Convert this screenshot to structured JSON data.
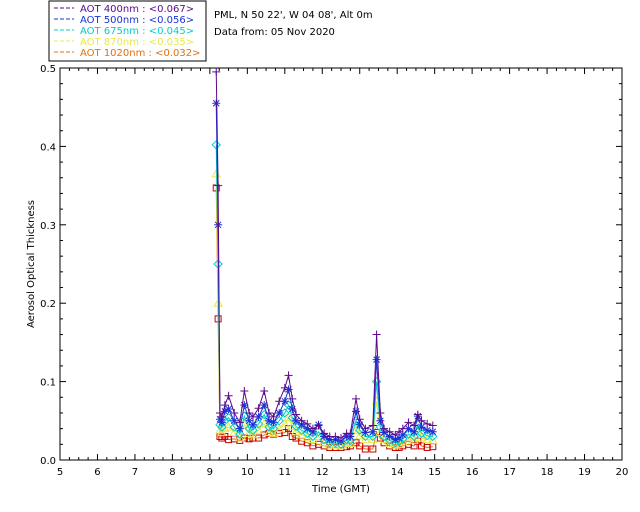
{
  "header": {
    "site": "PML, N 50 22', W 04 08', Alt 0m",
    "date": "Data from: 05 Nov 2020"
  },
  "colors": {
    "axis": "#000000",
    "s400": "#5a0a8c",
    "s500": "#1a33d9",
    "s675": "#00cccc",
    "s870": "#e8e84a",
    "s1020": "#e07010",
    "s1020_marker": "#cc0000"
  },
  "chart_data": {
    "type": "line",
    "xlabel": "Time (GMT)",
    "ylabel": "Aerosol Optical Thickness",
    "xlim": [
      5,
      20
    ],
    "ylim": [
      0,
      0.5
    ],
    "xticks": [
      "5",
      "6",
      "7",
      "8",
      "9",
      "10",
      "11",
      "12",
      "13",
      "14",
      "15",
      "16",
      "17",
      "18",
      "19",
      "20"
    ],
    "yticks": [
      "0.0",
      "0.1",
      "0.2",
      "0.3",
      "0.4",
      "0.5"
    ],
    "x": [
      9.17,
      9.22,
      9.27,
      9.32,
      9.4,
      9.5,
      9.65,
      9.8,
      9.92,
      10.05,
      10.15,
      10.3,
      10.45,
      10.58,
      10.7,
      10.85,
      11.0,
      11.1,
      11.2,
      11.3,
      11.45,
      11.6,
      11.75,
      11.9,
      12.05,
      12.2,
      12.35,
      12.5,
      12.65,
      12.75,
      12.9,
      13.0,
      13.15,
      13.35,
      13.45,
      13.55,
      13.65,
      13.8,
      13.95,
      14.05,
      14.15,
      14.3,
      14.45,
      14.55,
      14.65,
      14.8,
      14.95
    ],
    "series": [
      {
        "name": "AOT  400nm : <0.067>",
        "marker": "plus",
        "values": [
          0.495,
          0.35,
          0.06,
          0.055,
          0.07,
          0.082,
          0.06,
          0.048,
          0.088,
          0.06,
          0.055,
          0.066,
          0.088,
          0.06,
          0.055,
          0.075,
          0.092,
          0.108,
          0.078,
          0.058,
          0.05,
          0.046,
          0.04,
          0.044,
          0.034,
          0.03,
          0.03,
          0.028,
          0.034,
          0.034,
          0.078,
          0.052,
          0.04,
          0.044,
          0.16,
          0.06,
          0.04,
          0.036,
          0.032,
          0.036,
          0.04,
          0.048,
          0.044,
          0.058,
          0.05,
          0.046,
          0.044
        ]
      },
      {
        "name": "AOT  500nm : <0.056>",
        "marker": "star",
        "values": [
          0.455,
          0.3,
          0.052,
          0.048,
          0.062,
          0.065,
          0.05,
          0.04,
          0.07,
          0.05,
          0.045,
          0.055,
          0.07,
          0.05,
          0.048,
          0.06,
          0.075,
          0.09,
          0.065,
          0.05,
          0.045,
          0.04,
          0.036,
          0.045,
          0.03,
          0.026,
          0.026,
          0.024,
          0.03,
          0.03,
          0.062,
          0.045,
          0.035,
          0.036,
          0.128,
          0.05,
          0.035,
          0.03,
          0.026,
          0.028,
          0.032,
          0.04,
          0.036,
          0.056,
          0.042,
          0.038,
          0.036
        ]
      },
      {
        "name": "AOT  675nm : <0.045>",
        "marker": "diamond",
        "values": [
          0.402,
          0.25,
          0.045,
          0.042,
          0.05,
          0.054,
          0.042,
          0.033,
          0.056,
          0.04,
          0.038,
          0.046,
          0.058,
          0.042,
          0.04,
          0.05,
          0.06,
          0.07,
          0.054,
          0.043,
          0.038,
          0.034,
          0.03,
          0.036,
          0.026,
          0.022,
          0.022,
          0.02,
          0.026,
          0.025,
          0.05,
          0.038,
          0.03,
          0.03,
          0.1,
          0.042,
          0.03,
          0.025,
          0.022,
          0.024,
          0.027,
          0.033,
          0.03,
          0.045,
          0.034,
          0.031,
          0.03
        ]
      },
      {
        "name": "AOT  870nm : <0.035>",
        "marker": "triangle",
        "values": [
          0.365,
          0.2,
          0.038,
          0.035,
          0.04,
          0.042,
          0.035,
          0.028,
          0.045,
          0.034,
          0.032,
          0.038,
          0.046,
          0.035,
          0.034,
          0.04,
          0.046,
          0.054,
          0.043,
          0.036,
          0.032,
          0.029,
          0.026,
          0.03,
          0.022,
          0.019,
          0.019,
          0.018,
          0.022,
          0.021,
          0.038,
          0.031,
          0.026,
          0.026,
          0.075,
          0.035,
          0.026,
          0.021,
          0.019,
          0.02,
          0.023,
          0.027,
          0.025,
          0.036,
          0.028,
          0.026,
          0.025
        ]
      },
      {
        "name": "AOT 1020nm : <0.032>",
        "marker": "square",
        "values": [
          0.347,
          0.18,
          0.03,
          0.028,
          0.03,
          0.026,
          0.027,
          0.025,
          0.028,
          0.027,
          0.028,
          0.028,
          0.032,
          0.034,
          0.033,
          0.034,
          0.035,
          0.04,
          0.03,
          0.028,
          0.024,
          0.022,
          0.018,
          0.02,
          0.018,
          0.016,
          0.016,
          0.016,
          0.017,
          0.018,
          0.022,
          0.018,
          0.014,
          0.014,
          0.035,
          0.028,
          0.022,
          0.018,
          0.016,
          0.016,
          0.018,
          0.02,
          0.018,
          0.024,
          0.018,
          0.016,
          0.017
        ]
      }
    ],
    "legend_placement": "top-left",
    "grid": false
  }
}
